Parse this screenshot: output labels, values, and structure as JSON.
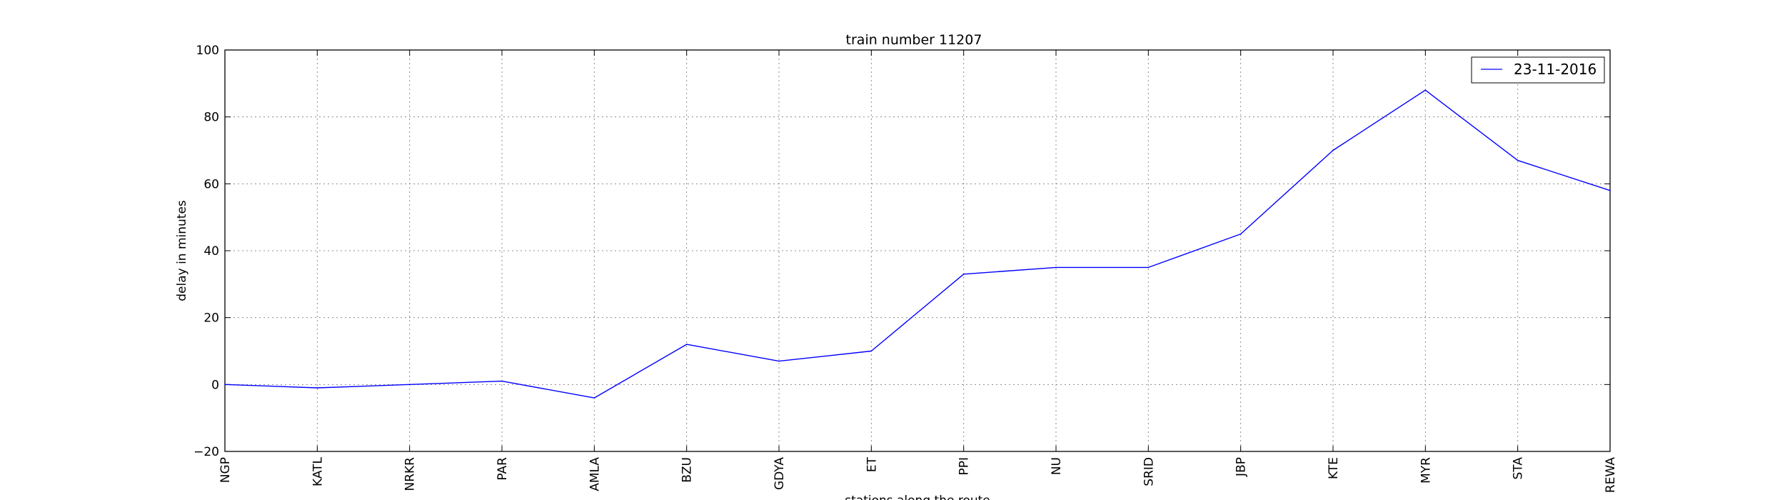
{
  "chart_data": {
    "type": "line",
    "title": "train number 11207",
    "xlabel": "stations along the route",
    "ylabel": "delay in minutes",
    "categories": [
      "NGP",
      "KATL",
      "NRKR",
      "PAR",
      "AMLA",
      "BZU",
      "GDYA",
      "ET",
      "PPI",
      "NU",
      "SRID",
      "JBP",
      "KTE",
      "MYR",
      "STA",
      "REWA"
    ],
    "series": [
      {
        "name": "23-11-2016",
        "color": "#0000ff",
        "values": [
          0,
          -1,
          0,
          1,
          -4,
          12,
          7,
          10,
          33,
          35,
          35,
          45,
          70,
          88,
          67,
          58
        ]
      }
    ],
    "ylim": [
      -20,
      100
    ],
    "yticks": [
      "−20",
      "0",
      "20",
      "40",
      "60",
      "80",
      "100"
    ],
    "grid": true,
    "legend": "top-right"
  }
}
